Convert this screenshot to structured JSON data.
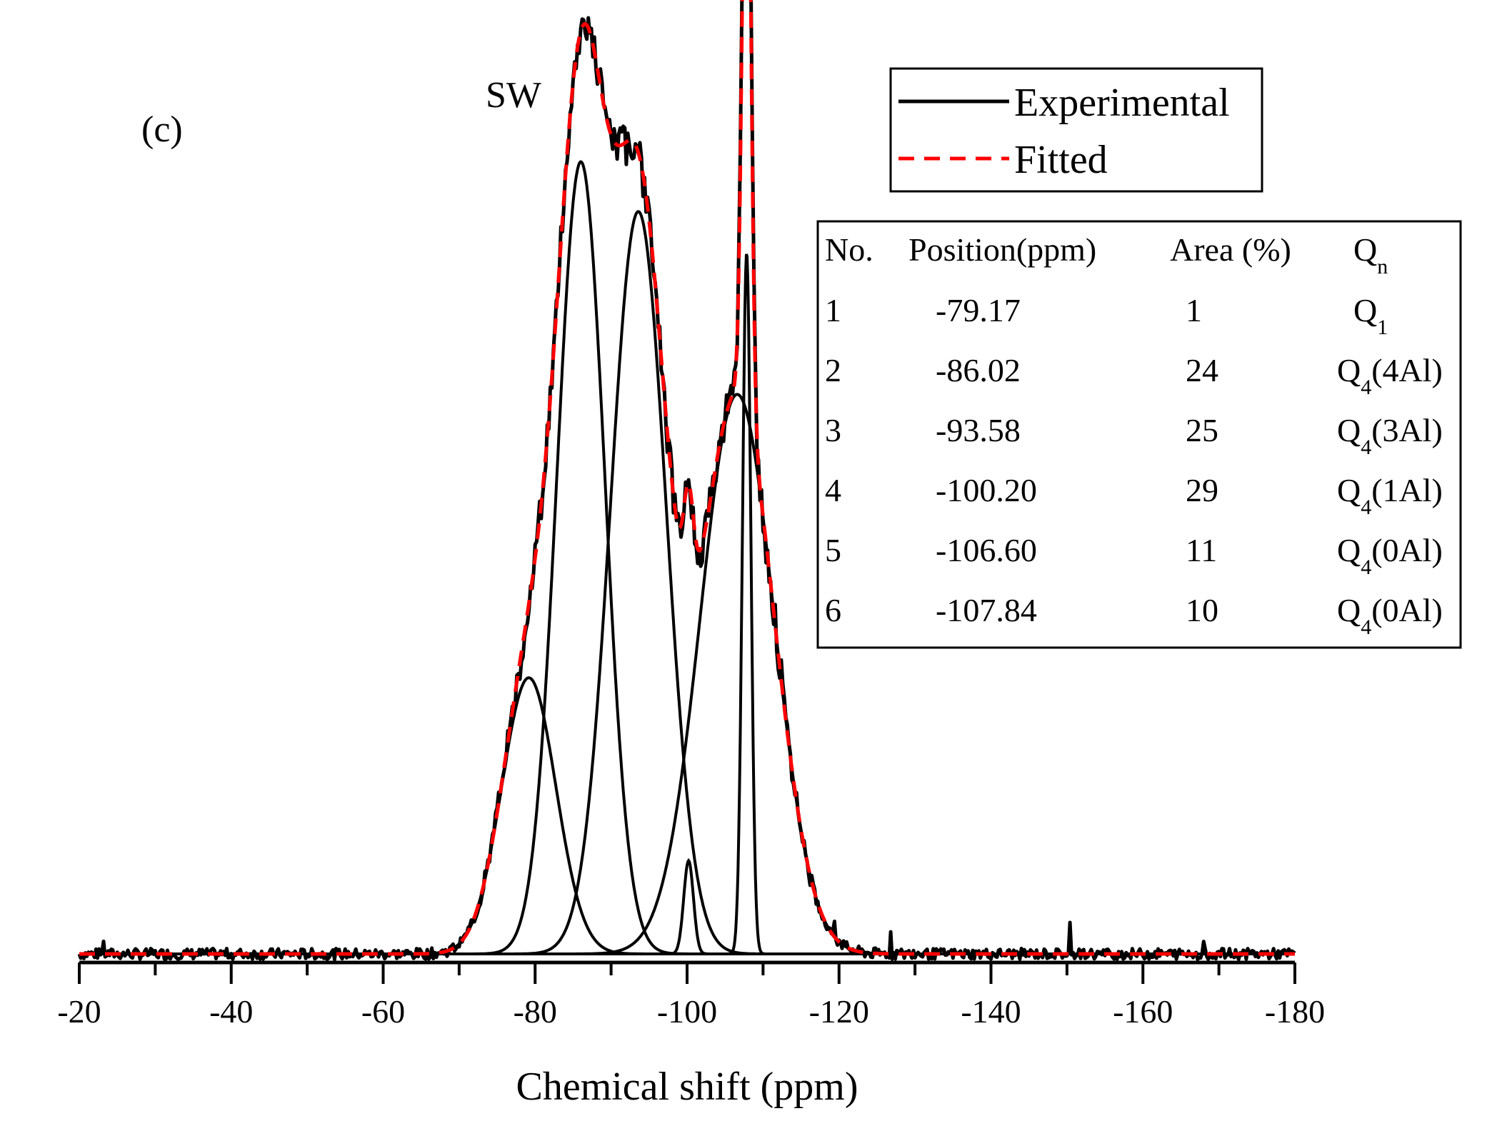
{
  "chart_data": {
    "type": "line",
    "panel_label": "(c)",
    "sample_label": "SW",
    "xlabel": "Chemical shift (ppm)",
    "ylabel": "",
    "xlim": [
      -20,
      -180
    ],
    "xticks": [
      -20,
      -40,
      -60,
      -80,
      -100,
      -120,
      -140,
      -160,
      -180
    ],
    "x_reversed": true,
    "colors": {
      "experimental": "#000000",
      "fitted": "#ff0000",
      "component": "#000000"
    },
    "legend": {
      "placement": "top-right",
      "entries": [
        {
          "name": "Experimental",
          "style": "solid",
          "color": "#000000"
        },
        {
          "name": "Fitted",
          "style": "dashed",
          "color": "#ff0000"
        }
      ]
    },
    "components": [
      {
        "no": "1",
        "position": -79.17,
        "area": 1,
        "height": 0.305,
        "fwhm": 8.4
      },
      {
        "no": "2",
        "position": -86.02,
        "area": 24,
        "height": 0.875,
        "fwhm": 7.4
      },
      {
        "no": "3",
        "position": -93.58,
        "area": 25,
        "height": 0.82,
        "fwhm": 8.6
      },
      {
        "no": "4",
        "position": -100.2,
        "area": 29,
        "height": 0.103,
        "fwhm": 1.5
      },
      {
        "no": "5",
        "position": -106.6,
        "area": 11,
        "height": 0.618,
        "fwhm": 11.4
      },
      {
        "no": "6",
        "position": -107.84,
        "area": 10,
        "height": 0.775,
        "fwhm": 1.3
      }
    ],
    "series": [
      {
        "name": "Experimental",
        "style": "solid",
        "description": "sum of components plus noise"
      },
      {
        "name": "Fitted",
        "style": "dashed",
        "description": "sum of components"
      }
    ],
    "table": {
      "headers": [
        "No.",
        "Position(ppm)",
        "Area (%)",
        "Q"
      ],
      "header_sub": "n",
      "rows": [
        {
          "no": "1",
          "position": "-79.17",
          "area": "1",
          "q": "Q",
          "q_sub": "1",
          "q_suffix": ""
        },
        {
          "no": "2",
          "position": "-86.02",
          "area": "24",
          "q": "Q",
          "q_sub": "4",
          "q_suffix": "(4Al)"
        },
        {
          "no": "3",
          "position": "-93.58",
          "area": "25",
          "q": "Q",
          "q_sub": "4",
          "q_suffix": "(3Al)"
        },
        {
          "no": "4",
          "position": "-100.20",
          "area": "29",
          "q": "Q",
          "q_sub": "4",
          "q_suffix": "(1Al)"
        },
        {
          "no": "5",
          "position": "-106.60",
          "area": "11",
          "q": "Q",
          "q_sub": "4",
          "q_suffix": "(0Al)"
        },
        {
          "no": "6",
          "position": "-107.84",
          "area": "10",
          "q": "Q",
          "q_sub": "4",
          "q_suffix": "(0Al)"
        }
      ]
    }
  }
}
